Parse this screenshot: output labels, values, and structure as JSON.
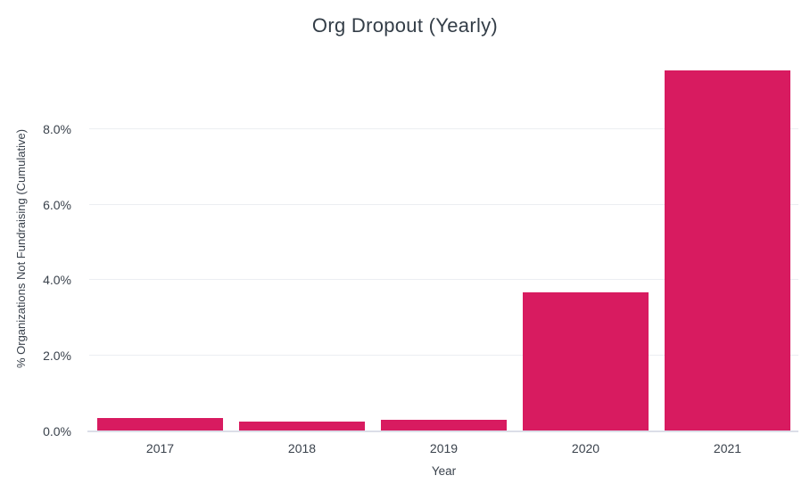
{
  "chart_data": {
    "type": "bar",
    "title": "Org Dropout (Yearly)",
    "xlabel": "Year",
    "ylabel": "% Organizations Not Fundraising (Cumulative)",
    "categories": [
      "2017",
      "2018",
      "2019",
      "2020",
      "2021"
    ],
    "values": [
      0.35,
      0.25,
      0.31,
      3.67,
      9.55
    ],
    "ylim": [
      0,
      9.65
    ],
    "yticks": [
      0,
      2,
      4,
      6,
      8
    ],
    "ytick_labels": [
      "0.0%",
      "2.0%",
      "4.0%",
      "6.0%",
      "8.0%"
    ],
    "grid": true,
    "legend": false,
    "colors": {
      "bar": "#D81B60",
      "title": "#333D47",
      "tick": "#3A424C",
      "grid": "#ECEEF2",
      "axis_line": "#DBDEE8",
      "background": "#FFFFFF"
    }
  }
}
